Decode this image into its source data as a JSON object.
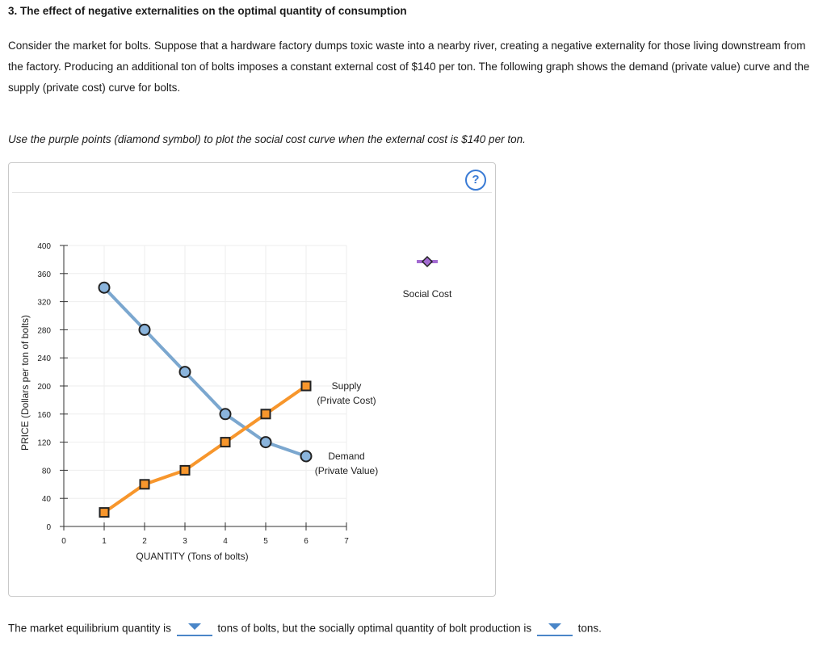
{
  "question": {
    "title": "3. The effect of negative externalities on the optimal quantity of consumption",
    "paragraph": "Consider the market for bolts. Suppose that a hardware factory dumps toxic waste into a nearby river, creating a negative externality for those living downstream from the factory. Producing an additional ton of bolts imposes a constant external cost of $140 per ton. The following graph shows the demand (private value) curve and the supply (private cost) curve for bolts.",
    "instruction": "Use the purple points (diamond symbol) to plot the social cost curve when the external cost is $140 per ton."
  },
  "help_label": "?",
  "chart_data": {
    "type": "line",
    "xlabel": "QUANTITY (Tons of bolts)",
    "ylabel": "PRICE (Dollars per ton of bolts)",
    "xlim": [
      0,
      7
    ],
    "ylim": [
      0,
      400
    ],
    "x_ticks": [
      "0",
      "1",
      "2",
      "3",
      "4",
      "5",
      "6",
      "7"
    ],
    "y_ticks": [
      "0",
      "40",
      "80",
      "120",
      "160",
      "200",
      "240",
      "280",
      "320",
      "360",
      "400"
    ],
    "grid": true,
    "series": [
      {
        "name": "Demand (Private Value)",
        "label_lines": [
          "Demand",
          "(Private Value)"
        ],
        "color": "#7ba7cf",
        "marker": "circle",
        "marker_fill": "#8ab4dc",
        "points": [
          [
            1,
            340
          ],
          [
            2,
            280
          ],
          [
            3,
            220
          ],
          [
            4,
            160
          ],
          [
            5,
            120
          ],
          [
            6,
            100
          ]
        ]
      },
      {
        "name": "Supply (Private Cost)",
        "label_lines": [
          "Supply",
          "(Private Cost)"
        ],
        "color": "#f7962c",
        "marker": "square",
        "marker_fill": "#f7962c",
        "points": [
          [
            1,
            20
          ],
          [
            2,
            60
          ],
          [
            3,
            80
          ],
          [
            4,
            120
          ],
          [
            5,
            160
          ],
          [
            6,
            200
          ]
        ]
      }
    ],
    "social_cost_tool": {
      "label": "Social Cost",
      "color": "#a36bd1"
    }
  },
  "answer_sentence": {
    "part1": "The market equilibrium quantity is",
    "part2": "tons of bolts, but the socially optimal quantity of bolt production is",
    "part3": "tons."
  }
}
